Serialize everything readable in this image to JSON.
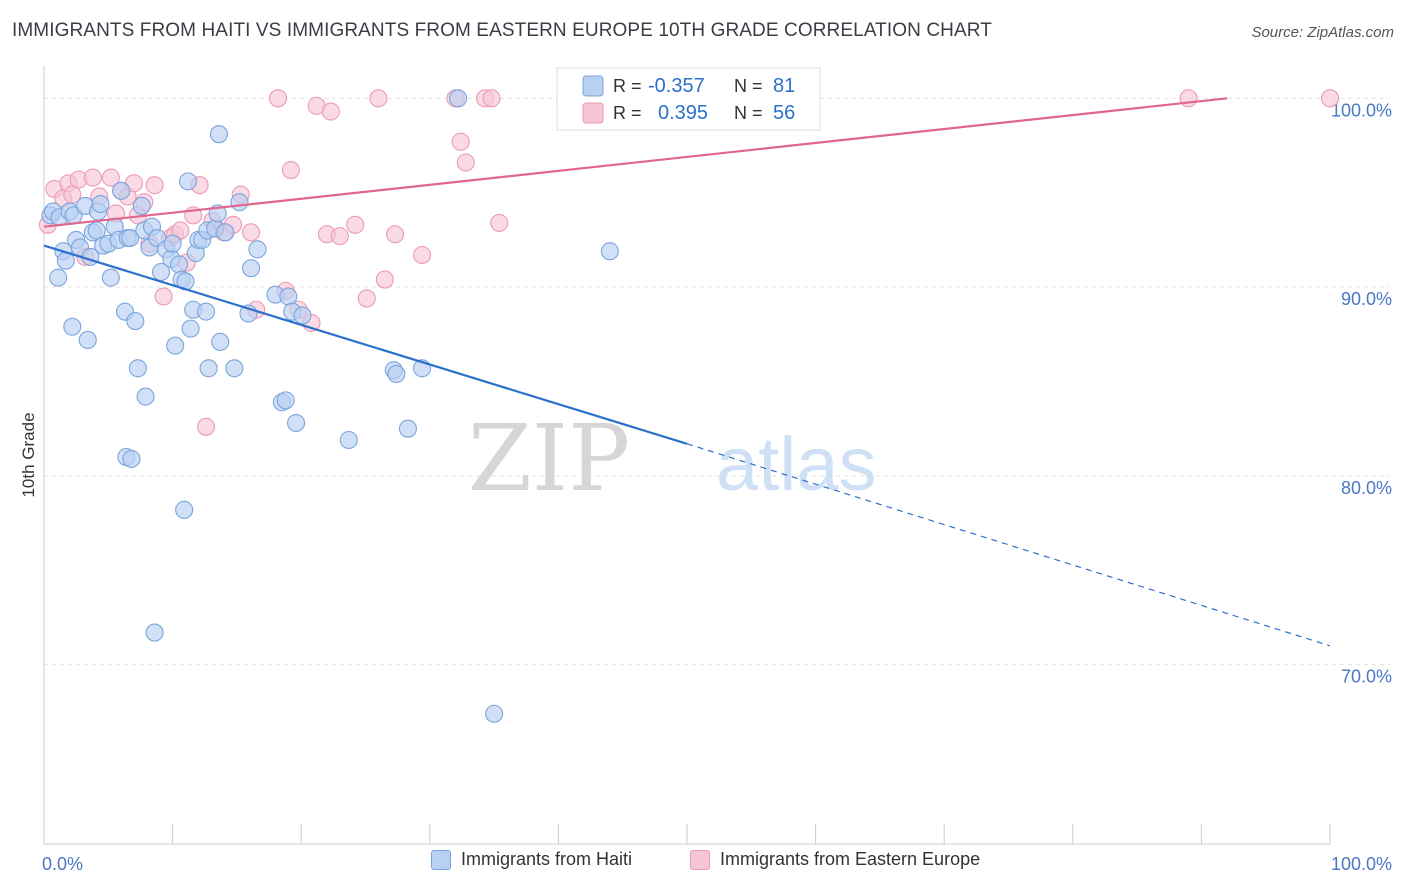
{
  "title": "IMMIGRANTS FROM HAITI VS IMMIGRANTS FROM EASTERN EUROPE 10TH GRADE CORRELATION CHART",
  "source": "Source: ZipAtlas.com",
  "watermark": {
    "zip": "ZIP",
    "atlas": "atlas"
  },
  "legend_top": [
    {
      "r_label": "R =",
      "r_value": "-0.357",
      "n_label": "N =",
      "n_value": "81"
    },
    {
      "r_label": "R =",
      "r_value": "0.395",
      "n_label": "N =",
      "n_value": "56"
    }
  ],
  "colors": {
    "blue_fill": "#b8d0f2",
    "blue_stroke": "#7aa5dc",
    "blue_line": "#2b70cc",
    "pink_fill": "#f7c6d6",
    "pink_stroke": "#ec9ab7",
    "pink_line": "#e0668f",
    "axis_text": "#4a78c4",
    "grid": "#e3e3e3"
  },
  "chart_data": {
    "type": "scatter",
    "title": "IMMIGRANTS FROM HAITI VS IMMIGRANTS FROM EASTERN EUROPE 10TH GRADE CORRELATION CHART",
    "xlabel": "",
    "ylabel": "10th Grade",
    "xlim": [
      0,
      100
    ],
    "ylim": [
      60.5,
      101.5
    ],
    "x_tick_labels": [
      "0.0%",
      "100.0%"
    ],
    "y_ticks": [
      70,
      80,
      90,
      100
    ],
    "y_tick_labels": [
      "70.0%",
      "80.0%",
      "90.0%",
      "100.0%"
    ],
    "grid": true,
    "series": [
      {
        "name": "Immigrants from Haiti",
        "color": "blue",
        "r": -0.357,
        "n": 81,
        "trend": {
          "x0": 0,
          "y0": 92.2,
          "x1": 50,
          "y1": 81.7,
          "solid_until": 50,
          "dashed_until": 100,
          "y_end": 71.0
        },
        "points": [
          [
            0.5,
            93.8
          ],
          [
            0.7,
            94
          ],
          [
            1.2,
            93.7
          ],
          [
            1.1,
            90.5
          ],
          [
            1.5,
            91.9
          ],
          [
            1.7,
            91.4
          ],
          [
            2,
            94
          ],
          [
            2.3,
            93.8
          ],
          [
            2.2,
            87.9
          ],
          [
            2.5,
            92.5
          ],
          [
            2.8,
            92.1
          ],
          [
            3.2,
            94.3
          ],
          [
            3.4,
            87.2
          ],
          [
            3.6,
            91.6
          ],
          [
            3.8,
            92.9
          ],
          [
            4.1,
            93
          ],
          [
            4.2,
            94
          ],
          [
            4.4,
            94.4
          ],
          [
            4.6,
            92.2
          ],
          [
            5,
            92.3
          ],
          [
            5.2,
            90.5
          ],
          [
            5.5,
            93.2
          ],
          [
            5.8,
            92.5
          ],
          [
            6,
            95.1
          ],
          [
            6.3,
            88.7
          ],
          [
            6.4,
            81
          ],
          [
            6.5,
            92.6
          ],
          [
            6.7,
            92.6
          ],
          [
            6.8,
            80.9
          ],
          [
            7.1,
            88.2
          ],
          [
            7.3,
            85.7
          ],
          [
            7.6,
            94.3
          ],
          [
            7.8,
            93
          ],
          [
            7.9,
            84.2
          ],
          [
            8.2,
            92.1
          ],
          [
            8.4,
            93.2
          ],
          [
            8.6,
            71.7
          ],
          [
            8.8,
            92.6
          ],
          [
            9.1,
            90.8
          ],
          [
            9.5,
            92
          ],
          [
            9.9,
            91.5
          ],
          [
            10,
            92.3
          ],
          [
            10.2,
            86.9
          ],
          [
            10.5,
            91.2
          ],
          [
            10.7,
            90.4
          ],
          [
            10.9,
            78.2
          ],
          [
            11,
            90.3
          ],
          [
            11.2,
            95.6
          ],
          [
            11.4,
            87.8
          ],
          [
            11.6,
            88.8
          ],
          [
            11.8,
            91.8
          ],
          [
            12,
            92.5
          ],
          [
            12.3,
            92.5
          ],
          [
            12.6,
            88.7
          ],
          [
            12.7,
            93
          ],
          [
            12.8,
            85.7
          ],
          [
            13.3,
            93.1
          ],
          [
            13.5,
            93.9
          ],
          [
            13.6,
            98.1
          ],
          [
            13.7,
            87.1
          ],
          [
            14.1,
            92.9
          ],
          [
            14.8,
            85.7
          ],
          [
            15.2,
            94.5
          ],
          [
            15.9,
            88.6
          ],
          [
            16.1,
            91
          ],
          [
            16.6,
            92
          ],
          [
            18,
            89.6
          ],
          [
            18.5,
            83.9
          ],
          [
            18.8,
            84
          ],
          [
            19,
            89.5
          ],
          [
            19.3,
            88.7
          ],
          [
            19.6,
            82.8
          ],
          [
            20.1,
            88.5
          ],
          [
            23.7,
            81.9
          ],
          [
            27.2,
            85.6
          ],
          [
            27.4,
            85.4
          ],
          [
            28.3,
            82.5
          ],
          [
            29.4,
            85.7
          ],
          [
            32.2,
            100
          ],
          [
            44,
            91.9
          ],
          [
            35,
            67.4
          ]
        ]
      },
      {
        "name": "Immigrants from Eastern Europe",
        "color": "pink",
        "r": 0.395,
        "n": 56,
        "trend": {
          "x0": 0,
          "y0": 93.2,
          "x1": 92,
          "y1": 100,
          "solid_until": 92,
          "dashed_until": 92,
          "y_end": 100
        },
        "points": [
          [
            0.3,
            93.3
          ],
          [
            0.8,
            95.2
          ],
          [
            1.5,
            94.7
          ],
          [
            1.9,
            95.5
          ],
          [
            2.2,
            94.9
          ],
          [
            2.7,
            95.7
          ],
          [
            3.2,
            91.6
          ],
          [
            3.8,
            95.8
          ],
          [
            4.3,
            94.8
          ],
          [
            5.2,
            95.8
          ],
          [
            5.6,
            93.9
          ],
          [
            6,
            95.1
          ],
          [
            6.5,
            94.8
          ],
          [
            7,
            95.5
          ],
          [
            7.3,
            93.8
          ],
          [
            7.8,
            94.5
          ],
          [
            8.2,
            92.3
          ],
          [
            8.6,
            95.4
          ],
          [
            9.3,
            89.5
          ],
          [
            9.8,
            92.6
          ],
          [
            10.2,
            92.8
          ],
          [
            10.6,
            93
          ],
          [
            11.1,
            91.3
          ],
          [
            11.6,
            93.8
          ],
          [
            12.1,
            95.4
          ],
          [
            12.6,
            82.6
          ],
          [
            13.1,
            93.5
          ],
          [
            13.4,
            93.1
          ],
          [
            14,
            92.9
          ],
          [
            14.7,
            93.3
          ],
          [
            15.3,
            94.9
          ],
          [
            16.1,
            92.9
          ],
          [
            16.5,
            88.8
          ],
          [
            18.2,
            100
          ],
          [
            18.8,
            89.8
          ],
          [
            19.2,
            96.2
          ],
          [
            19.8,
            88.8
          ],
          [
            20.8,
            88.1
          ],
          [
            21.2,
            99.6
          ],
          [
            22,
            92.8
          ],
          [
            22.3,
            99.3
          ],
          [
            23,
            92.7
          ],
          [
            24.2,
            93.3
          ],
          [
            25.1,
            89.4
          ],
          [
            26,
            100
          ],
          [
            26.5,
            90.4
          ],
          [
            27.3,
            92.8
          ],
          [
            29.4,
            91.7
          ],
          [
            32,
            100
          ],
          [
            32.4,
            97.7
          ],
          [
            32.8,
            96.6
          ],
          [
            34.3,
            100
          ],
          [
            34.8,
            100
          ],
          [
            35.4,
            93.4
          ],
          [
            89,
            100
          ],
          [
            100,
            100
          ]
        ]
      }
    ]
  },
  "legend_bottom": [
    "Immigrants from Haiti",
    "Immigrants from Eastern Europe"
  ]
}
